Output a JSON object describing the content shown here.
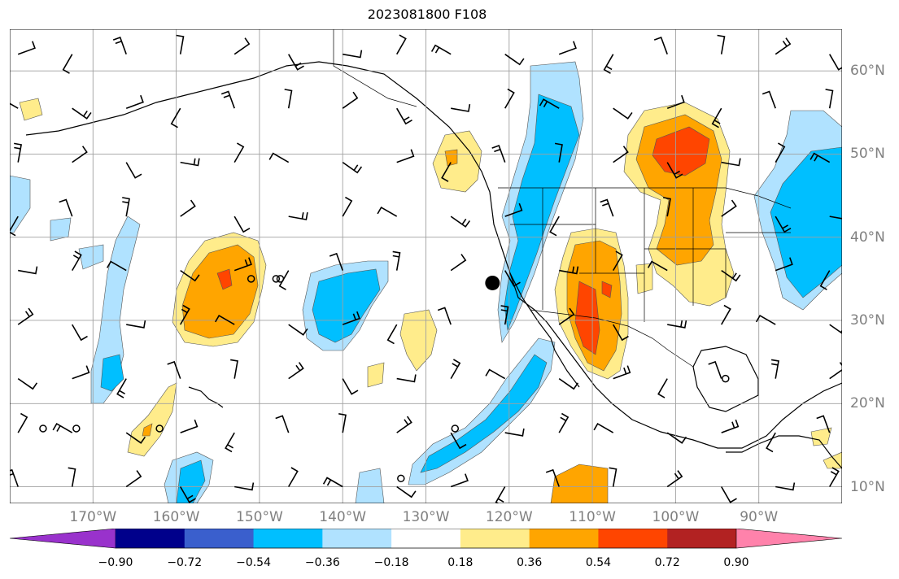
{
  "title": "2023081800 F108",
  "map": {
    "projection": "PlateCarree",
    "lon_range": [
      -180,
      -80
    ],
    "lat_range": [
      8,
      65
    ],
    "gridlines": true,
    "lon_labels": [
      "170°W",
      "160°W",
      "150°W",
      "140°W",
      "130°W",
      "120°W",
      "110°W",
      "100°W",
      "90°W"
    ],
    "lon_values": [
      -170,
      -160,
      -150,
      -140,
      -130,
      -120,
      -110,
      -100,
      -90
    ],
    "lat_labels": [
      "60°N",
      "50°N",
      "40°N",
      "30°N",
      "20°N",
      "10°N"
    ],
    "lat_values": [
      60,
      50,
      40,
      30,
      20,
      10
    ],
    "marker": {
      "lon": -122,
      "lat": 34.5,
      "shape": "filled-circle"
    },
    "calm_circles": [
      {
        "lon": -176,
        "lat": 17
      },
      {
        "lon": -172,
        "lat": 17
      },
      {
        "lon": -162,
        "lat": 17
      },
      {
        "lon": -148,
        "lat": 35
      },
      {
        "lon": -147.5,
        "lat": 35
      },
      {
        "lon": -151,
        "lat": 35
      },
      {
        "lon": -133,
        "lat": 11
      },
      {
        "lon": -126.5,
        "lat": 17
      },
      {
        "lon": -94,
        "lat": 23
      }
    ]
  },
  "colorbar": {
    "colors": [
      "#9932cc",
      "#00008b",
      "#3a5fcd",
      "#00bfff",
      "#b0e2ff",
      "#ffffff",
      "#ffec8b",
      "#ffa500",
      "#ff4500",
      "#b22222",
      "#ff82ab"
    ],
    "tick_labels": [
      "−0.90",
      "−0.72",
      "−0.54",
      "−0.36",
      "−0.18",
      "0.18",
      "0.36",
      "0.54",
      "0.72",
      "0.90"
    ],
    "tick_values": [
      -0.9,
      -0.72,
      -0.54,
      -0.36,
      -0.18,
      0.18,
      0.36,
      0.54,
      0.72,
      0.9
    ],
    "extend": "both"
  }
}
